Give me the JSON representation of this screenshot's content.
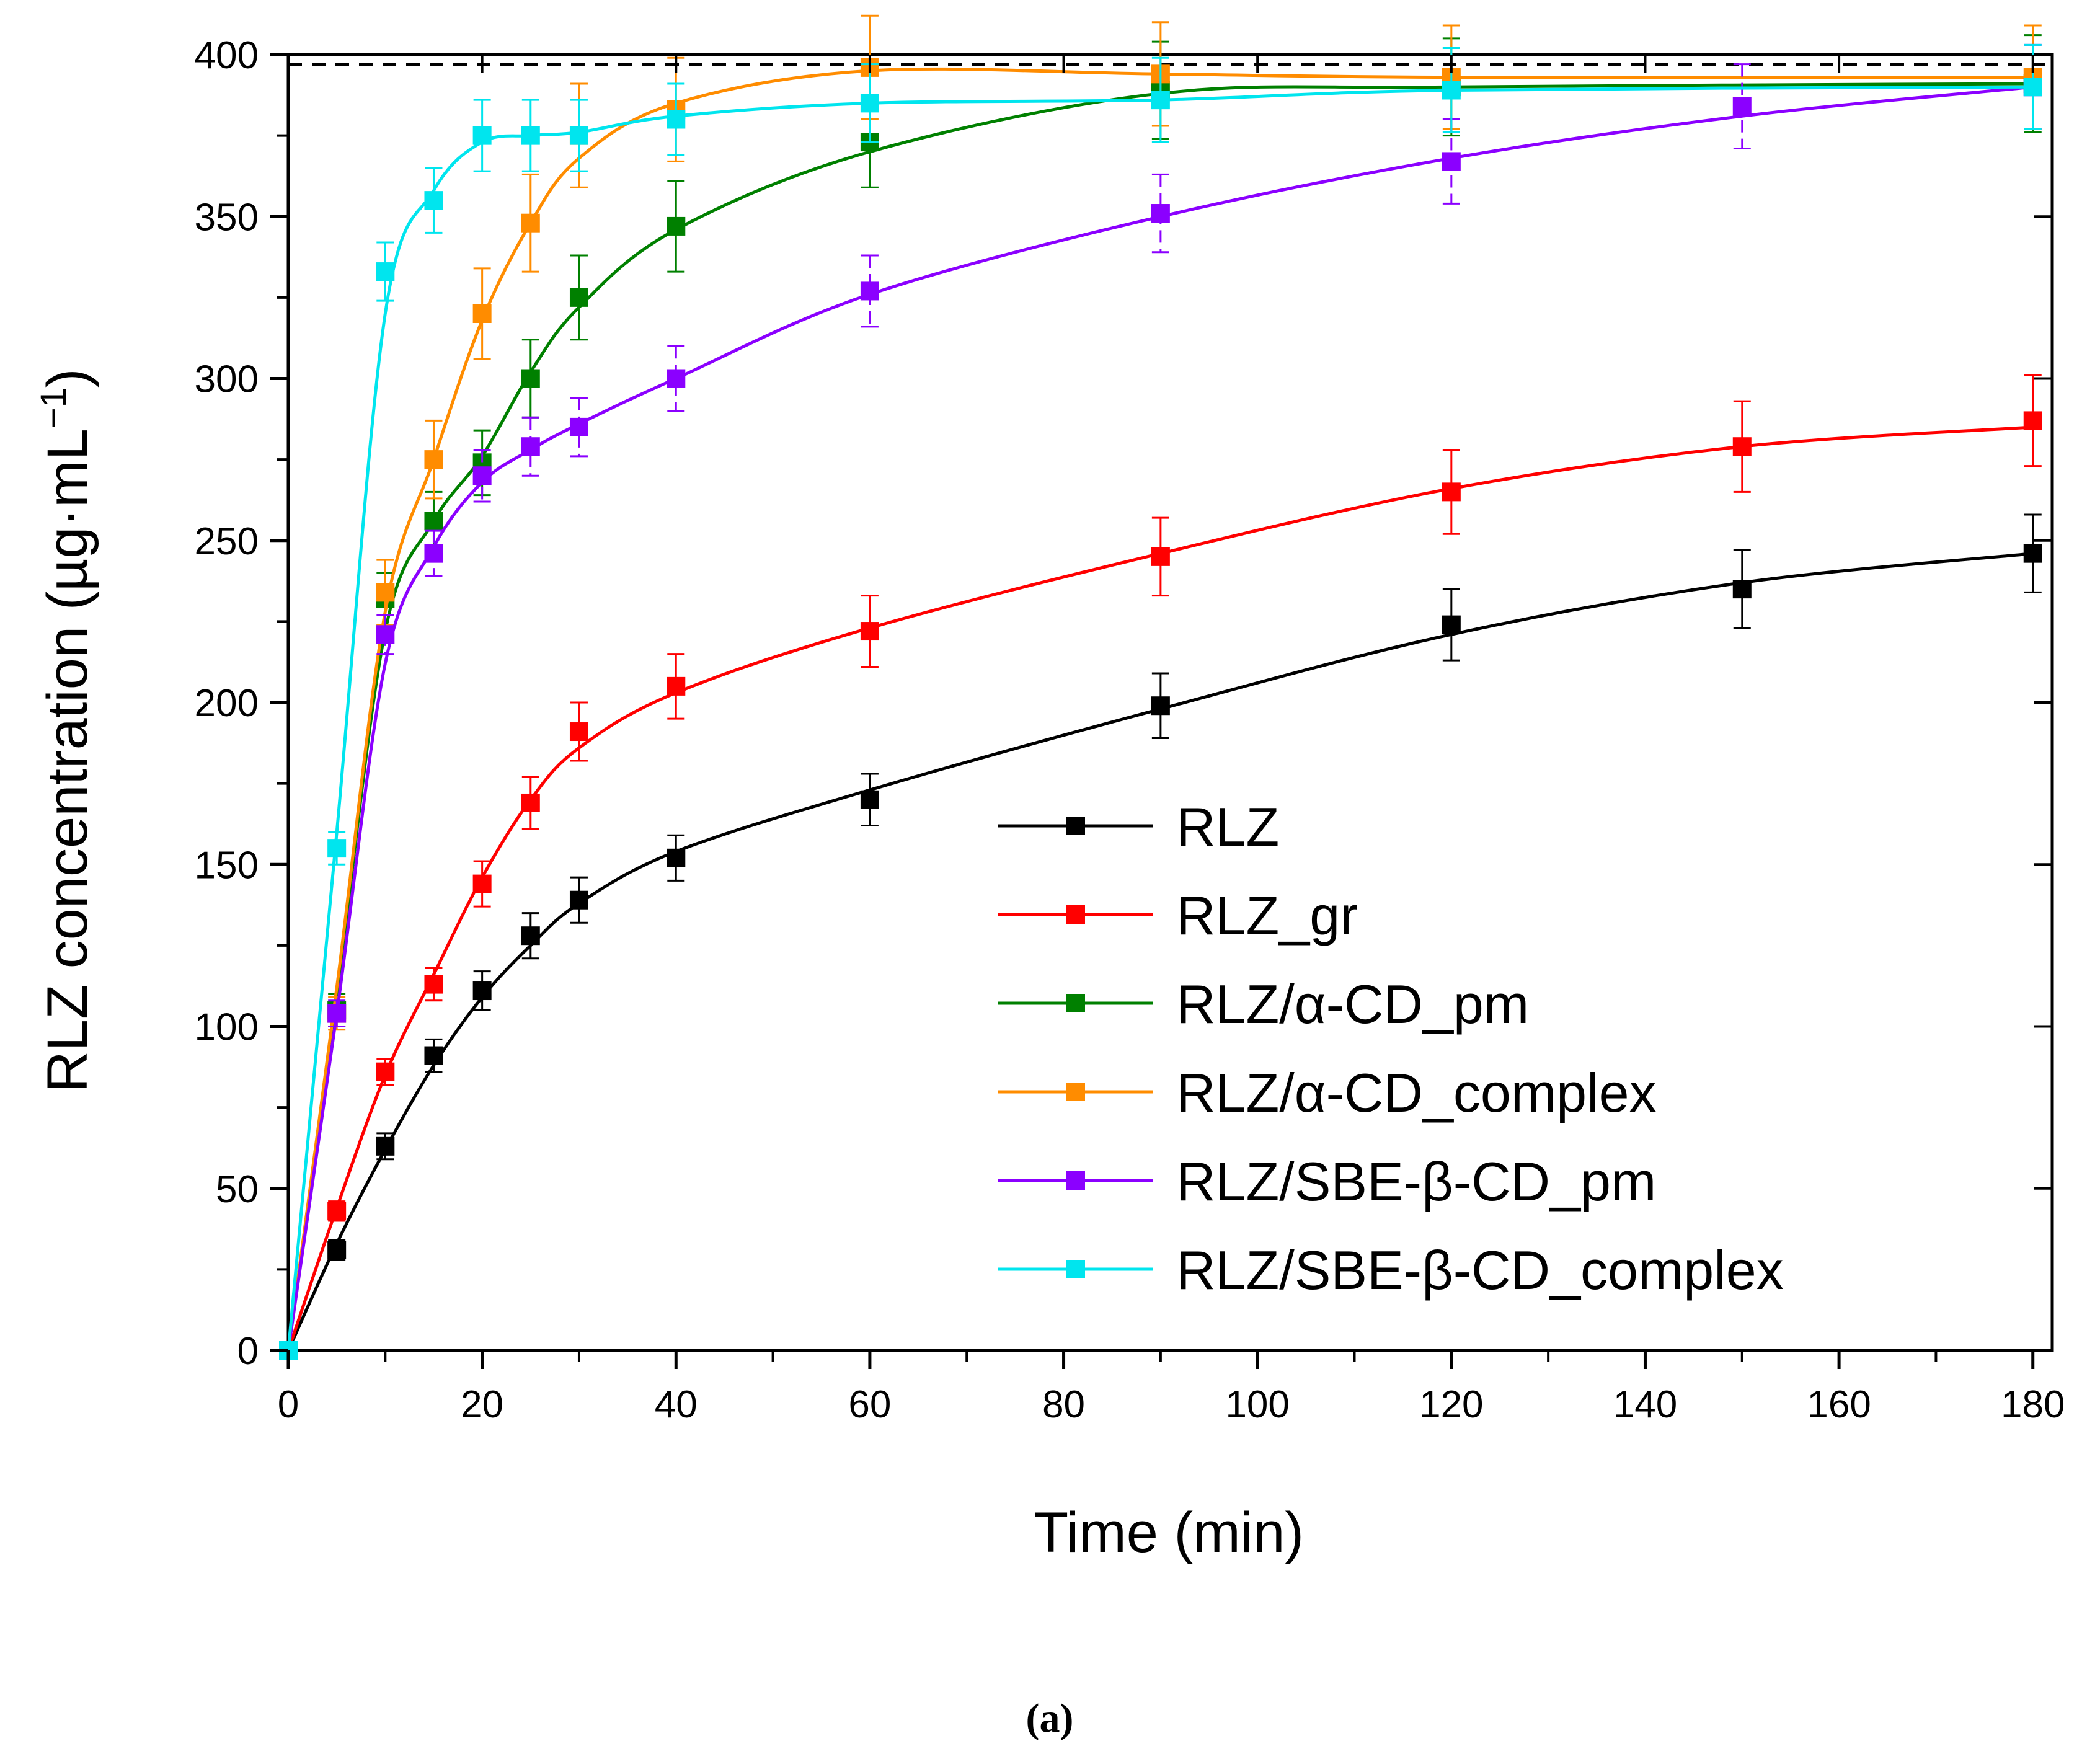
{
  "chart_data": {
    "type": "line",
    "title": "",
    "caption": "(a)",
    "xlabel": "Time (min)",
    "ylabel": "RLZ concentration (µg·mL",
    "ylabel_sup": "−1",
    "ylabel_close": ")",
    "xlim": [
      0,
      182
    ],
    "ylim": [
      0,
      400
    ],
    "xticks": [
      "0",
      "20",
      "40",
      "60",
      "80",
      "100",
      "120",
      "140",
      "160",
      "180"
    ],
    "yticks": [
      "0",
      "50",
      "100",
      "150",
      "200",
      "250",
      "300",
      "350",
      "400"
    ],
    "reference_line": {
      "y": 397,
      "style": "dashed",
      "color": "#000000"
    },
    "legend_position": "lower-right",
    "series": [
      {
        "name": "RLZ",
        "color": "#000000",
        "x": [
          0,
          5,
          10,
          15,
          20,
          25,
          30,
          40,
          60,
          90,
          120,
          150,
          180
        ],
        "values": [
          0,
          31,
          63,
          91,
          111,
          128,
          139,
          152,
          170,
          199,
          224,
          235,
          246
        ],
        "errors": [
          0,
          3,
          4,
          5,
          6,
          7,
          7,
          7,
          8,
          10,
          11,
          12,
          12
        ],
        "fit": [
          [
            0,
            0
          ],
          [
            5,
            33
          ],
          [
            10,
            62
          ],
          [
            15,
            88
          ],
          [
            20,
            109
          ],
          [
            25,
            125
          ],
          [
            30,
            138
          ],
          [
            40,
            154
          ],
          [
            60,
            173
          ],
          [
            90,
            198
          ],
          [
            120,
            221
          ],
          [
            150,
            237
          ],
          [
            180,
            246
          ]
        ]
      },
      {
        "name": "RLZ_gr",
        "color": "#ff0000",
        "x": [
          0,
          5,
          10,
          15,
          20,
          25,
          30,
          40,
          60,
          90,
          120,
          150,
          180
        ],
        "values": [
          0,
          43,
          86,
          113,
          144,
          169,
          191,
          205,
          222,
          245,
          265,
          279,
          287
        ],
        "errors": [
          0,
          3,
          4,
          5,
          7,
          8,
          9,
          10,
          11,
          12,
          13,
          14,
          14
        ],
        "fit": [
          [
            0,
            0
          ],
          [
            5,
            44
          ],
          [
            10,
            85
          ],
          [
            15,
            116
          ],
          [
            20,
            146
          ],
          [
            25,
            170
          ],
          [
            30,
            186
          ],
          [
            40,
            203
          ],
          [
            60,
            223
          ],
          [
            90,
            246
          ],
          [
            120,
            266
          ],
          [
            150,
            279
          ],
          [
            180,
            285
          ]
        ]
      },
      {
        "name": "RLZ/α-CD_pm",
        "color": "#008000",
        "x": [
          0,
          5,
          10,
          15,
          20,
          25,
          30,
          40,
          60,
          90,
          120,
          180
        ],
        "values": [
          0,
          105,
          232,
          256,
          274,
          300,
          325,
          347,
          373,
          389,
          390,
          391
        ],
        "errors": [
          0,
          5,
          8,
          9,
          10,
          12,
          13,
          14,
          14,
          15,
          15,
          15
        ],
        "fit": [
          [
            0,
            0
          ],
          [
            5,
            110
          ],
          [
            10,
            222
          ],
          [
            15,
            256
          ],
          [
            20,
            276
          ],
          [
            25,
            302
          ],
          [
            30,
            322
          ],
          [
            40,
            346
          ],
          [
            60,
            370
          ],
          [
            90,
            388
          ],
          [
            120,
            390
          ],
          [
            180,
            391
          ]
        ]
      },
      {
        "name": "RLZ/α-CD_complex",
        "color": "#ff8c00",
        "x": [
          0,
          5,
          10,
          15,
          20,
          25,
          30,
          40,
          60,
          90,
          120,
          180
        ],
        "values": [
          0,
          104,
          234,
          275,
          320,
          348,
          375,
          383,
          396,
          394,
          393,
          393
        ],
        "errors": [
          0,
          5,
          10,
          12,
          14,
          15,
          16,
          16,
          16,
          16,
          16,
          16
        ],
        "fit": [
          [
            0,
            0
          ],
          [
            5,
            112
          ],
          [
            10,
            228
          ],
          [
            15,
            275
          ],
          [
            20,
            318
          ],
          [
            25,
            348
          ],
          [
            30,
            368
          ],
          [
            40,
            385
          ],
          [
            60,
            395
          ],
          [
            90,
            394
          ],
          [
            120,
            393
          ],
          [
            180,
            393
          ]
        ]
      },
      {
        "name": "RLZ/SBE-β-CD_pm",
        "color": "#8b00ff",
        "x": [
          0,
          5,
          10,
          15,
          20,
          25,
          30,
          40,
          60,
          90,
          120,
          150,
          180
        ],
        "values": [
          0,
          104,
          221,
          246,
          270,
          279,
          285,
          300,
          327,
          351,
          367,
          384,
          390
        ],
        "errors": [
          0,
          4,
          6,
          7,
          8,
          9,
          9,
          10,
          11,
          12,
          13,
          13,
          13
        ],
        "fit": [
          [
            0,
            0
          ],
          [
            5,
            104
          ],
          [
            10,
            212
          ],
          [
            15,
            248
          ],
          [
            20,
            268
          ],
          [
            25,
            278
          ],
          [
            30,
            286
          ],
          [
            40,
            300
          ],
          [
            60,
            326
          ],
          [
            90,
            350
          ],
          [
            120,
            368
          ],
          [
            150,
            381
          ],
          [
            180,
            390
          ]
        ]
      },
      {
        "name": "RLZ/SBE-β-CD_complex",
        "color": "#00e5ee",
        "x": [
          0,
          5,
          10,
          15,
          20,
          25,
          30,
          40,
          60,
          90,
          120,
          180
        ],
        "values": [
          0,
          155,
          333,
          355,
          375,
          375,
          375,
          380,
          385,
          386,
          389,
          390
        ],
        "errors": [
          0,
          5,
          9,
          10,
          11,
          11,
          11,
          11,
          12,
          13,
          13,
          13
        ],
        "fit": [
          [
            0,
            0
          ],
          [
            5,
            160
          ],
          [
            10,
            320
          ],
          [
            15,
            358
          ],
          [
            20,
            373
          ],
          [
            25,
            375
          ],
          [
            30,
            376
          ],
          [
            40,
            381
          ],
          [
            60,
            385
          ],
          [
            90,
            386
          ],
          [
            120,
            389
          ],
          [
            180,
            390
          ]
        ]
      }
    ]
  }
}
